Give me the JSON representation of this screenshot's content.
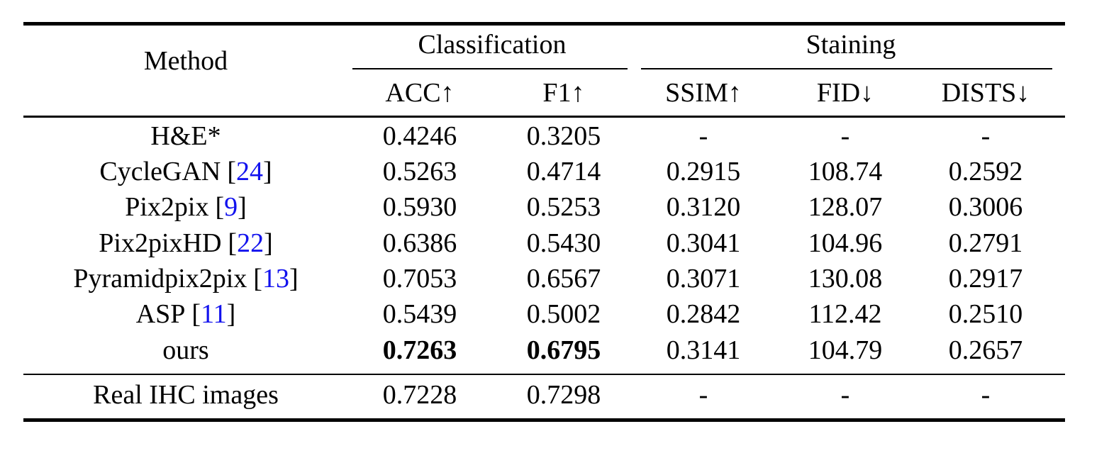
{
  "table": {
    "method_header": "Method",
    "groups": [
      {
        "label": "Classification"
      },
      {
        "label": "Staining"
      }
    ],
    "subheaders": [
      "ACC↑",
      "F1↑",
      "SSIM↑",
      "FID↓",
      "DISTS↓"
    ],
    "cite_brackets": {
      "open": "[",
      "close": "]"
    },
    "rows": [
      {
        "method": "H&E*",
        "cite": "",
        "values": [
          "0.4246",
          "0.3205",
          "-",
          "-",
          "-"
        ],
        "bold": []
      },
      {
        "method": "CycleGAN",
        "cite": "24",
        "values": [
          "0.5263",
          "0.4714",
          "0.2915",
          "108.74",
          "0.2592"
        ],
        "bold": []
      },
      {
        "method": "Pix2pix",
        "cite": "9",
        "values": [
          "0.5930",
          "0.5253",
          "0.3120",
          "128.07",
          "0.3006"
        ],
        "bold": []
      },
      {
        "method": "Pix2pixHD",
        "cite": "22",
        "values": [
          "0.6386",
          "0.5430",
          "0.3041",
          "104.96",
          "0.2791"
        ],
        "bold": []
      },
      {
        "method": "Pyramidpix2pix",
        "cite": "13",
        "values": [
          "0.7053",
          "0.6567",
          "0.3071",
          "130.08",
          "0.2917"
        ],
        "bold": []
      },
      {
        "method": "ASP",
        "cite": "11",
        "values": [
          "0.5439",
          "0.5002",
          "0.2842",
          "112.42",
          "0.2510"
        ],
        "bold": []
      },
      {
        "method": "ours",
        "cite": "",
        "values": [
          "0.7263",
          "0.6795",
          "0.3141",
          "104.79",
          "0.2657"
        ],
        "bold": [
          0,
          1
        ]
      }
    ],
    "footer_rows": [
      {
        "method": "Real IHC images",
        "cite": "",
        "values": [
          "0.7228",
          "0.7298",
          "-",
          "-",
          "-"
        ],
        "bold": []
      }
    ]
  },
  "colors": {
    "text": "#000000",
    "citation_link": "#1212ee",
    "background": "#ffffff"
  }
}
